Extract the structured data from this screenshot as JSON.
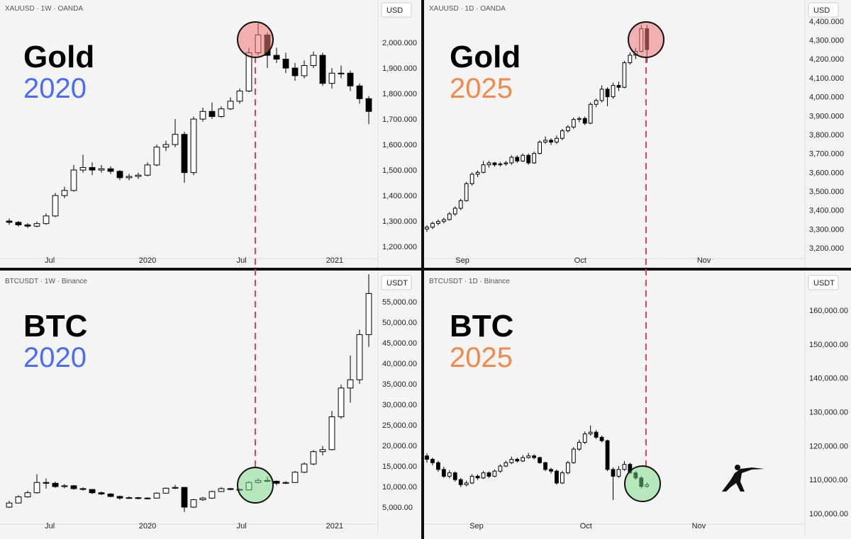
{
  "chart_data": [
    {
      "type": "candlestick",
      "title": "Gold",
      "subtitle": "2020",
      "subtitle_color": "#4a6cf7",
      "symbol": "XAUUSD · 1W · OANDA",
      "currency": "USD",
      "up_color": "#ffffff",
      "down_color": "#000000",
      "candles": [
        [
          1300,
          1310,
          1285,
          1295
        ],
        [
          1295,
          1300,
          1278,
          1285
        ],
        [
          1285,
          1292,
          1272,
          1280
        ],
        [
          1280,
          1298,
          1275,
          1290
        ],
        [
          1290,
          1330,
          1285,
          1320
        ],
        [
          1320,
          1410,
          1315,
          1400
        ],
        [
          1400,
          1435,
          1390,
          1420
        ],
        [
          1420,
          1520,
          1415,
          1500
        ],
        [
          1500,
          1560,
          1490,
          1510
        ],
        [
          1510,
          1530,
          1480,
          1500
        ],
        [
          1500,
          1520,
          1490,
          1505
        ],
        [
          1505,
          1515,
          1485,
          1495
        ],
        [
          1495,
          1500,
          1460,
          1470
        ],
        [
          1470,
          1485,
          1460,
          1475
        ],
        [
          1475,
          1490,
          1465,
          1480
        ],
        [
          1480,
          1530,
          1475,
          1520
        ],
        [
          1520,
          1600,
          1515,
          1590
        ],
        [
          1590,
          1615,
          1575,
          1600
        ],
        [
          1600,
          1700,
          1590,
          1640
        ],
        [
          1640,
          1650,
          1450,
          1490
        ],
        [
          1490,
          1710,
          1480,
          1700
        ],
        [
          1700,
          1745,
          1690,
          1730
        ],
        [
          1730,
          1765,
          1700,
          1710
        ],
        [
          1710,
          1750,
          1705,
          1740
        ],
        [
          1740,
          1785,
          1735,
          1770
        ],
        [
          1770,
          1820,
          1760,
          1810
        ],
        [
          1810,
          1980,
          1805,
          1960
        ],
        [
          1960,
          2075,
          1950,
          2030
        ],
        [
          2030,
          2040,
          1900,
          1950
        ],
        [
          1950,
          1980,
          1920,
          1935
        ],
        [
          1935,
          1960,
          1880,
          1900
        ],
        [
          1900,
          1920,
          1850,
          1870
        ],
        [
          1870,
          1930,
          1860,
          1910
        ],
        [
          1910,
          1965,
          1900,
          1950
        ],
        [
          1950,
          1960,
          1830,
          1840
        ],
        [
          1840,
          1900,
          1820,
          1880
        ],
        [
          1880,
          1910,
          1860,
          1880
        ],
        [
          1880,
          1890,
          1810,
          1830
        ],
        [
          1830,
          1840,
          1760,
          1780
        ],
        [
          1780,
          1790,
          1680,
          1730
        ]
      ],
      "xlim": [
        -1,
        40
      ],
      "xticks": [
        {
          "value": 4.4,
          "label": "Jul"
        },
        {
          "value": 15,
          "label": "2020"
        },
        {
          "value": 25.2,
          "label": "Jul"
        },
        {
          "value": 35.3,
          "label": "2021"
        }
      ],
      "ylim": [
        1153,
        2167
      ],
      "yticks": [
        {
          "value": 1200,
          "label": "1,200.000"
        },
        {
          "value": 1300,
          "label": "1,300.000"
        },
        {
          "value": 1400,
          "label": "1,400.000"
        },
        {
          "value": 1500,
          "label": "1,500.000"
        },
        {
          "value": 1600,
          "label": "1,600.000"
        },
        {
          "value": 1700,
          "label": "1,700.000"
        },
        {
          "value": 1800,
          "label": "1,800.000"
        },
        {
          "value": 1900,
          "label": "1,900.000"
        },
        {
          "value": 2000,
          "label": "2,000.000"
        }
      ]
    },
    {
      "type": "candlestick",
      "title": "Gold",
      "subtitle": "2025",
      "subtitle_color": "#f0894a",
      "symbol": "XAUUSD · 1D · OANDA",
      "currency": "USD",
      "up_color": "#ffffff",
      "down_color": "#000000",
      "candles": [
        [
          3300,
          3320,
          3285,
          3310
        ],
        [
          3310,
          3340,
          3300,
          3330
        ],
        [
          3330,
          3350,
          3320,
          3340
        ],
        [
          3340,
          3360,
          3330,
          3350
        ],
        [
          3350,
          3390,
          3345,
          3380
        ],
        [
          3380,
          3420,
          3370,
          3410
        ],
        [
          3410,
          3460,
          3400,
          3450
        ],
        [
          3450,
          3550,
          3445,
          3540
        ],
        [
          3540,
          3600,
          3530,
          3590
        ],
        [
          3590,
          3610,
          3575,
          3600
        ],
        [
          3600,
          3660,
          3595,
          3640
        ],
        [
          3640,
          3660,
          3625,
          3650
        ],
        [
          3650,
          3655,
          3630,
          3640
        ],
        [
          3640,
          3655,
          3630,
          3645
        ],
        [
          3645,
          3660,
          3635,
          3650
        ],
        [
          3650,
          3690,
          3640,
          3680
        ],
        [
          3680,
          3690,
          3650,
          3660
        ],
        [
          3660,
          3700,
          3655,
          3690
        ],
        [
          3690,
          3700,
          3640,
          3650
        ],
        [
          3650,
          3710,
          3645,
          3700
        ],
        [
          3700,
          3770,
          3695,
          3760
        ],
        [
          3760,
          3790,
          3750,
          3770
        ],
        [
          3770,
          3780,
          3745,
          3760
        ],
        [
          3760,
          3795,
          3750,
          3780
        ],
        [
          3780,
          3830,
          3770,
          3820
        ],
        [
          3820,
          3850,
          3810,
          3840
        ],
        [
          3840,
          3890,
          3830,
          3880
        ],
        [
          3880,
          3895,
          3865,
          3885
        ],
        [
          3885,
          3895,
          3850,
          3860
        ],
        [
          3860,
          3970,
          3855,
          3960
        ],
        [
          3960,
          3990,
          3945,
          3980
        ],
        [
          3980,
          4060,
          3970,
          4040
        ],
        [
          4040,
          4050,
          3950,
          4000
        ],
        [
          4000,
          4075,
          3990,
          4060
        ],
        [
          4060,
          4080,
          4030,
          4050
        ],
        [
          4050,
          4190,
          4045,
          4180
        ],
        [
          4180,
          4235,
          4170,
          4220
        ],
        [
          4220,
          4260,
          4200,
          4240
        ],
        [
          4240,
          4380,
          4235,
          4360
        ],
        [
          4360,
          4380,
          4180,
          4250
        ]
      ],
      "xlim": [
        -0.5,
        67
      ],
      "xticks": [
        {
          "value": 6.3,
          "label": "Sep"
        },
        {
          "value": 27.2,
          "label": "Oct"
        },
        {
          "value": 49.1,
          "label": "Nov"
        }
      ],
      "ylim": [
        3144,
        4512
      ],
      "yticks": [
        {
          "value": 3200,
          "label": "3,200.000"
        },
        {
          "value": 3300,
          "label": "3,300.000"
        },
        {
          "value": 3400,
          "label": "3,400.000"
        },
        {
          "value": 3500,
          "label": "3,500.000"
        },
        {
          "value": 3600,
          "label": "3,600.000"
        },
        {
          "value": 3700,
          "label": "3,700.000"
        },
        {
          "value": 3800,
          "label": "3,800.000"
        },
        {
          "value": 3900,
          "label": "3,900.000"
        },
        {
          "value": 4000,
          "label": "4,000.000"
        },
        {
          "value": 4100,
          "label": "4,100.000"
        },
        {
          "value": 4200,
          "label": "4,200.000"
        },
        {
          "value": 4300,
          "label": "4,300.000"
        },
        {
          "value": 4400,
          "label": "4,400.000"
        }
      ]
    },
    {
      "type": "candlestick",
      "title": "BTC",
      "subtitle": "2020",
      "subtitle_color": "#4a6cf7",
      "symbol": "BTCUSDT · 1W · Binance",
      "currency": "USDT",
      "up_color": "#ffffff",
      "down_color": "#000000",
      "candles": [
        [
          5000,
          6500,
          4800,
          6000
        ],
        [
          6000,
          7900,
          5900,
          7500
        ],
        [
          7500,
          9000,
          7300,
          8500
        ],
        [
          8500,
          13000,
          8300,
          11000
        ],
        [
          11000,
          12000,
          9500,
          10800
        ],
        [
          10800,
          11200,
          9700,
          10000
        ],
        [
          10000,
          10600,
          9600,
          10200
        ],
        [
          10200,
          10400,
          9200,
          9500
        ],
        [
          9500,
          9800,
          9000,
          9300
        ],
        [
          9300,
          9400,
          8200,
          8500
        ],
        [
          8500,
          8800,
          7900,
          8200
        ],
        [
          8200,
          8400,
          7400,
          7600
        ],
        [
          7600,
          7800,
          6800,
          7200
        ],
        [
          7200,
          7600,
          7000,
          7300
        ],
        [
          7300,
          7500,
          6900,
          7100
        ],
        [
          7100,
          7400,
          6900,
          7200
        ],
        [
          7200,
          8600,
          7100,
          8400
        ],
        [
          8400,
          9800,
          8300,
          9600
        ],
        [
          9600,
          10400,
          9400,
          9800
        ],
        [
          9800,
          9900,
          3800,
          5000
        ],
        [
          5000,
          7000,
          4800,
          6800
        ],
        [
          6800,
          7500,
          6500,
          7200
        ],
        [
          7200,
          9000,
          7000,
          8800
        ],
        [
          8800,
          9900,
          8700,
          9500
        ],
        [
          9500,
          9700,
          9100,
          9300
        ],
        [
          9300,
          9500,
          9000,
          9200
        ],
        [
          9200,
          11300,
          9100,
          11000
        ],
        [
          11000,
          12000,
          10800,
          11500
        ],
        [
          11500,
          12400,
          11100,
          11300
        ],
        [
          11300,
          11500,
          10300,
          10800
        ],
        [
          10800,
          11300,
          10600,
          11000
        ],
        [
          11000,
          13800,
          10900,
          13500
        ],
        [
          13500,
          15900,
          13300,
          15500
        ],
        [
          15500,
          18900,
          15200,
          18500
        ],
        [
          18500,
          19900,
          17600,
          19000
        ],
        [
          19000,
          28400,
          18800,
          27000
        ],
        [
          27000,
          34800,
          26500,
          34000
        ],
        [
          34000,
          41900,
          30400,
          36000
        ],
        [
          36000,
          48200,
          35000,
          47000
        ],
        [
          47000,
          61700,
          44000,
          57000
        ]
      ],
      "xlim": [
        -1,
        40
      ],
      "xticks": [
        {
          "value": 4.4,
          "label": "Jul"
        },
        {
          "value": 15,
          "label": "2020"
        },
        {
          "value": 25.2,
          "label": "Jul"
        },
        {
          "value": 35.3,
          "label": "2021"
        }
      ],
      "ylim": [
        862,
        62069
      ],
      "yticks": [
        {
          "value": 5000,
          "label": "5,000.00"
        },
        {
          "value": 10000,
          "label": "10,000.00"
        },
        {
          "value": 15000,
          "label": "15,000.00"
        },
        {
          "value": 20000,
          "label": "20,000.00"
        },
        {
          "value": 25000,
          "label": "25,000.00"
        },
        {
          "value": 30000,
          "label": "30,000.00"
        },
        {
          "value": 35000,
          "label": "35,000.00"
        },
        {
          "value": 40000,
          "label": "40,000.00"
        },
        {
          "value": 45000,
          "label": "45,000.00"
        },
        {
          "value": 50000,
          "label": "50,000.00"
        },
        {
          "value": 55000,
          "label": "55,000.00"
        }
      ]
    },
    {
      "type": "candlestick",
      "title": "BTC",
      "subtitle": "2025",
      "subtitle_color": "#f0894a",
      "symbol": "BTCUSDT · 1D · Binance",
      "currency": "USDT",
      "up_color": "#ffffff",
      "down_color": "#000000",
      "candles": [
        [
          117000,
          117800,
          115000,
          116000
        ],
        [
          116000,
          116500,
          114200,
          115000
        ],
        [
          115000,
          115600,
          112300,
          113000
        ],
        [
          113000,
          113800,
          110500,
          111000
        ],
        [
          111000,
          112800,
          110400,
          112000
        ],
        [
          112000,
          112400,
          109400,
          110000
        ],
        [
          110000,
          110500,
          107800,
          108500
        ],
        [
          108500,
          109700,
          108000,
          109000
        ],
        [
          109000,
          111600,
          108700,
          111000
        ],
        [
          111000,
          111500,
          109900,
          110500
        ],
        [
          110500,
          112600,
          110200,
          112000
        ],
        [
          112000,
          112400,
          110500,
          111000
        ],
        [
          111000,
          113000,
          110700,
          112500
        ],
        [
          112500,
          114500,
          112000,
          114000
        ],
        [
          114000,
          115600,
          113700,
          115000
        ],
        [
          115000,
          116800,
          114600,
          116000
        ],
        [
          116000,
          116500,
          115000,
          115500
        ],
        [
          115500,
          117200,
          115200,
          116500
        ],
        [
          116500,
          117900,
          116200,
          117000
        ],
        [
          117000,
          117500,
          116000,
          116500
        ],
        [
          116500,
          116800,
          114700,
          115000
        ],
        [
          115000,
          115300,
          112500,
          113000
        ],
        [
          113000,
          113500,
          111800,
          112500
        ],
        [
          112500,
          113000,
          108500,
          109000
        ],
        [
          109000,
          112600,
          108700,
          112000
        ],
        [
          112000,
          115500,
          111600,
          115000
        ],
        [
          115000,
          119600,
          114700,
          119000
        ],
        [
          119000,
          121800,
          118500,
          121000
        ],
        [
          121000,
          124200,
          120500,
          123500
        ],
        [
          123500,
          126000,
          123000,
          124000
        ],
        [
          124000,
          124600,
          122000,
          122500
        ],
        [
          122500,
          123000,
          121000,
          121500
        ],
        [
          121500,
          121800,
          112500,
          113000
        ],
        [
          113000,
          113600,
          104000,
          111000
        ],
        [
          111000,
          114000,
          110500,
          113000
        ],
        [
          113000,
          115500,
          112600,
          114500
        ],
        [
          114500,
          115000,
          111600,
          112000
        ],
        [
          112000,
          112500,
          110000,
          110500
        ],
        [
          110500,
          111000,
          107400,
          108000
        ],
        [
          108000,
          109200,
          107600,
          108500
        ]
      ],
      "xlim": [
        -0.5,
        67
      ],
      "xticks": [
        {
          "value": 8.8,
          "label": "Sep"
        },
        {
          "value": 28.2,
          "label": "Oct"
        },
        {
          "value": 48.2,
          "label": "Nov"
        }
      ],
      "ylim": [
        96862,
        171088
      ],
      "yticks": [
        {
          "value": 100000,
          "label": "100,000.00"
        },
        {
          "value": 110000,
          "label": "110,000.00"
        },
        {
          "value": 120000,
          "label": "120,000.00"
        },
        {
          "value": 130000,
          "label": "130,000.00"
        },
        {
          "value": 140000,
          "label": "140,000.00"
        },
        {
          "value": 150000,
          "label": "150,000.00"
        },
        {
          "value": 160000,
          "label": "160,000.00"
        }
      ]
    }
  ]
}
